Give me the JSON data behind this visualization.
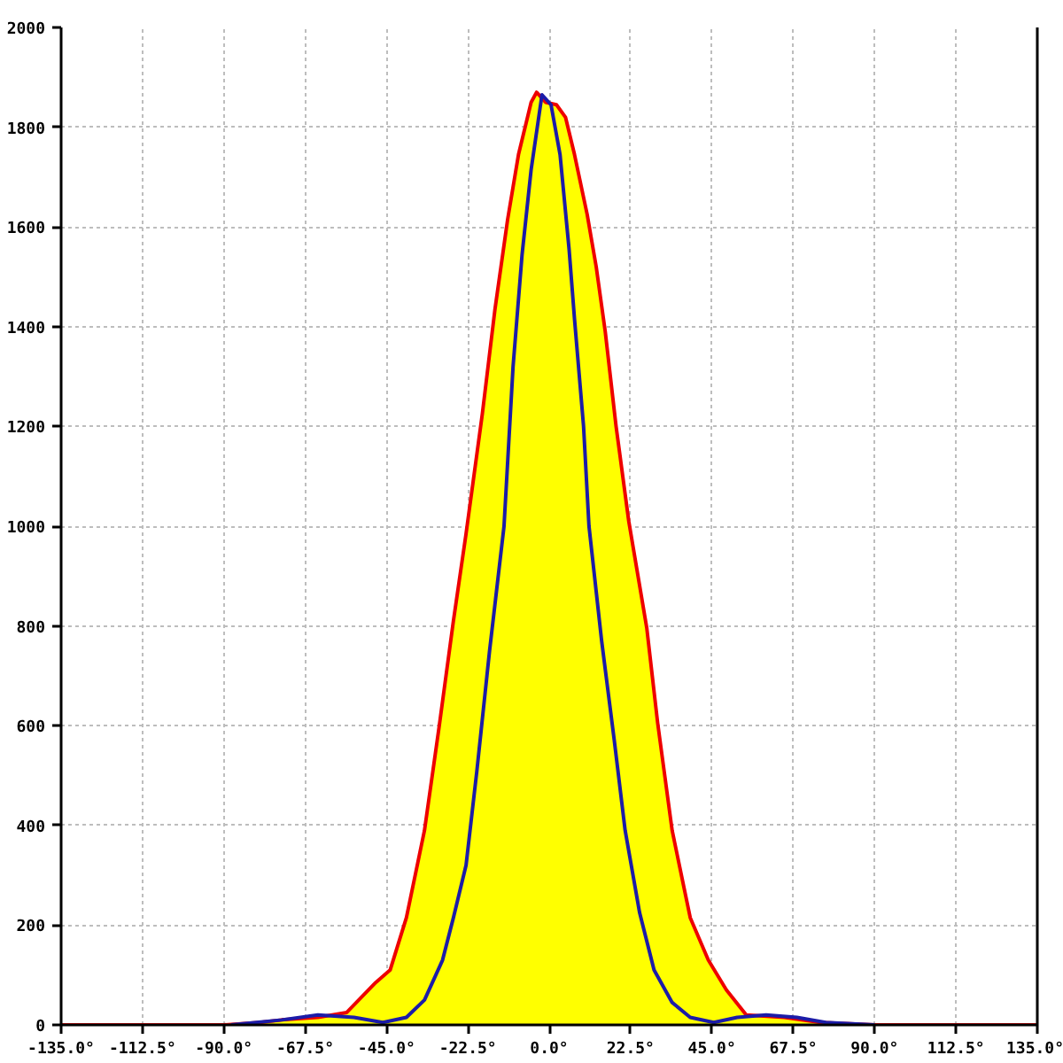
{
  "chart_data": {
    "type": "area",
    "xlim": [
      -135,
      135
    ],
    "xticks": [
      {
        "value": -135,
        "label": "-135.0°"
      },
      {
        "value": -112.5,
        "label": "-112.5°"
      },
      {
        "value": -90,
        "label": "-90.0°"
      },
      {
        "value": -67.5,
        "label": "-67.5°"
      },
      {
        "value": -45,
        "label": "-45.0°"
      },
      {
        "value": -22.5,
        "label": "-22.5°"
      },
      {
        "value": 0,
        "label": "0.0°"
      },
      {
        "value": 22.5,
        "label": "22.5°"
      },
      {
        "value": 45,
        "label": "45.0°"
      },
      {
        "value": 67.5,
        "label": "67.5°"
      },
      {
        "value": 90,
        "label": "90.0°"
      },
      {
        "value": 112.5,
        "label": "112.5°"
      },
      {
        "value": 135,
        "label": "135.0°"
      }
    ],
    "ylim": [
      0,
      2000
    ],
    "yticks": [
      0,
      200,
      400,
      600,
      800,
      1000,
      1200,
      1400,
      1600,
      1800,
      2000
    ],
    "grid": true,
    "series": [
      {
        "color": "#ffff00",
        "x": [
          -90,
          -80,
          -74,
          -64,
          -56,
          -48,
          -44,
          -39.5,
          -34.5,
          -30.5,
          -26.5,
          -23,
          -18.5,
          -15,
          -11.5,
          -8.5,
          -5,
          -3.5,
          -1,
          2,
          4.5,
          7,
          10.5,
          13,
          15.5,
          18.5,
          22,
          27,
          30,
          34,
          39,
          44,
          49,
          54.5,
          65,
          75,
          90
        ],
        "values": [
          0,
          5,
          10,
          15,
          25,
          85,
          110,
          215,
          390,
          595,
          810,
          985,
          1225,
          1435,
          1615,
          1745,
          1850,
          1870,
          1850,
          1845,
          1820,
          1745,
          1625,
          1520,
          1390,
          1200,
          1010,
          795,
          605,
          390,
          215,
          130,
          70,
          20,
          15,
          5,
          0
        ]
      },
      {
        "type": "line",
        "color": "#ee0000",
        "x": [
          -135,
          -90,
          -80,
          -74,
          -64,
          -56,
          -48,
          -44,
          -39.5,
          -34.5,
          -30.5,
          -26.5,
          -23,
          -18.5,
          -15,
          -11.5,
          -8.5,
          -5,
          -3.5,
          -1,
          2,
          4.5,
          7,
          10.5,
          13,
          15.5,
          18.5,
          22,
          27,
          30,
          34,
          39,
          44,
          49,
          54.5,
          65,
          75,
          90,
          135
        ],
        "values": [
          0,
          0,
          5,
          10,
          15,
          25,
          85,
          110,
          215,
          390,
          595,
          810,
          985,
          1225,
          1435,
          1615,
          1745,
          1850,
          1870,
          1850,
          1845,
          1820,
          1745,
          1625,
          1520,
          1390,
          1200,
          1010,
          795,
          605,
          390,
          215,
          130,
          70,
          20,
          15,
          5,
          0,
          0
        ]
      },
      {
        "type": "line",
        "color": "#1c1ca8",
        "x": [
          -88,
          -74,
          -64,
          -54,
          -46,
          -39.5,
          -34.5,
          -29.5,
          -26.5,
          -23,
          -20,
          -16.5,
          -12.5,
          -10,
          -7.5,
          -5,
          -2,
          0.5,
          3,
          5.5,
          7,
          9.5,
          11,
          14.5,
          18,
          21,
          25,
          29,
          34,
          39,
          45.5,
          52,
          60,
          68.5,
          76.5,
          90
        ],
        "values": [
          0,
          10,
          20,
          15,
          5,
          15,
          50,
          130,
          215,
          320,
          510,
          750,
          1000,
          1320,
          1545,
          1715,
          1865,
          1845,
          1745,
          1555,
          1415,
          1200,
          1000,
          770,
          570,
          390,
          225,
          110,
          45,
          15,
          5,
          15,
          20,
          15,
          5,
          0
        ]
      }
    ]
  }
}
